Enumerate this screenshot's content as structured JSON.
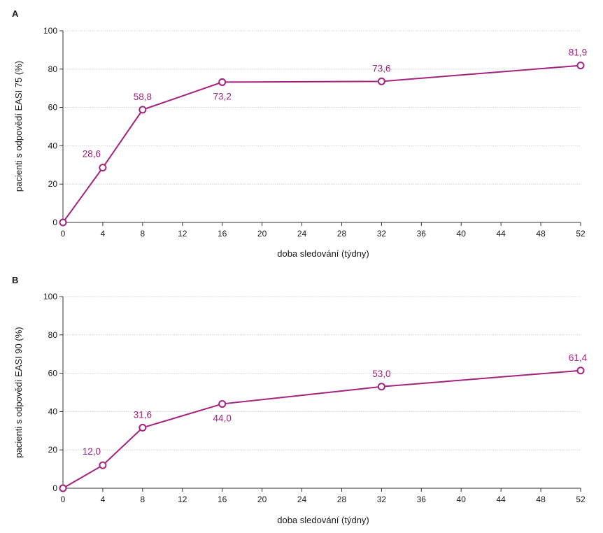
{
  "chart_data": [
    {
      "type": "line",
      "panel": "A",
      "title": "",
      "xlabel": "doba sledování (týdny)",
      "ylabel": "pacienti s odpovědí EASI 75 (%)",
      "xlim": [
        0,
        52
      ],
      "ylim": [
        0,
        100
      ],
      "xticks": [
        "0",
        "4",
        "8",
        "12",
        "16",
        "20",
        "24",
        "28",
        "32",
        "36",
        "40",
        "44",
        "48",
        "52"
      ],
      "yticks": [
        "0",
        "20",
        "40",
        "60",
        "80",
        "100"
      ],
      "grid": true,
      "color": "#a3237f",
      "x": [
        0,
        4,
        8,
        16,
        32,
        52
      ],
      "y": [
        0,
        28.6,
        58.8,
        73.2,
        73.6,
        81.9
      ],
      "labels": [
        "",
        "28,6",
        "58,8",
        "73,2",
        "73,6",
        "81,9"
      ],
      "label_pos": [
        "none",
        "above",
        "above",
        "below",
        "above",
        "above"
      ]
    },
    {
      "type": "line",
      "panel": "B",
      "title": "",
      "xlabel": "doba sledování (týdny)",
      "ylabel": "pacienti s odpovědí EASI 90 (%)",
      "xlim": [
        0,
        52
      ],
      "ylim": [
        0,
        100
      ],
      "xticks": [
        "0",
        "4",
        "8",
        "12",
        "16",
        "20",
        "24",
        "28",
        "32",
        "36",
        "40",
        "44",
        "48",
        "52"
      ],
      "yticks": [
        "0",
        "20",
        "40",
        "60",
        "80",
        "100"
      ],
      "grid": true,
      "color": "#a3237f",
      "x": [
        0,
        4,
        8,
        16,
        32,
        52
      ],
      "y": [
        0,
        12.0,
        31.6,
        44.0,
        53.0,
        61.4
      ],
      "labels": [
        "",
        "12,0",
        "31,6",
        "44,0",
        "53,0",
        "61,4"
      ],
      "label_pos": [
        "none",
        "above",
        "above",
        "below",
        "above",
        "above"
      ]
    }
  ]
}
